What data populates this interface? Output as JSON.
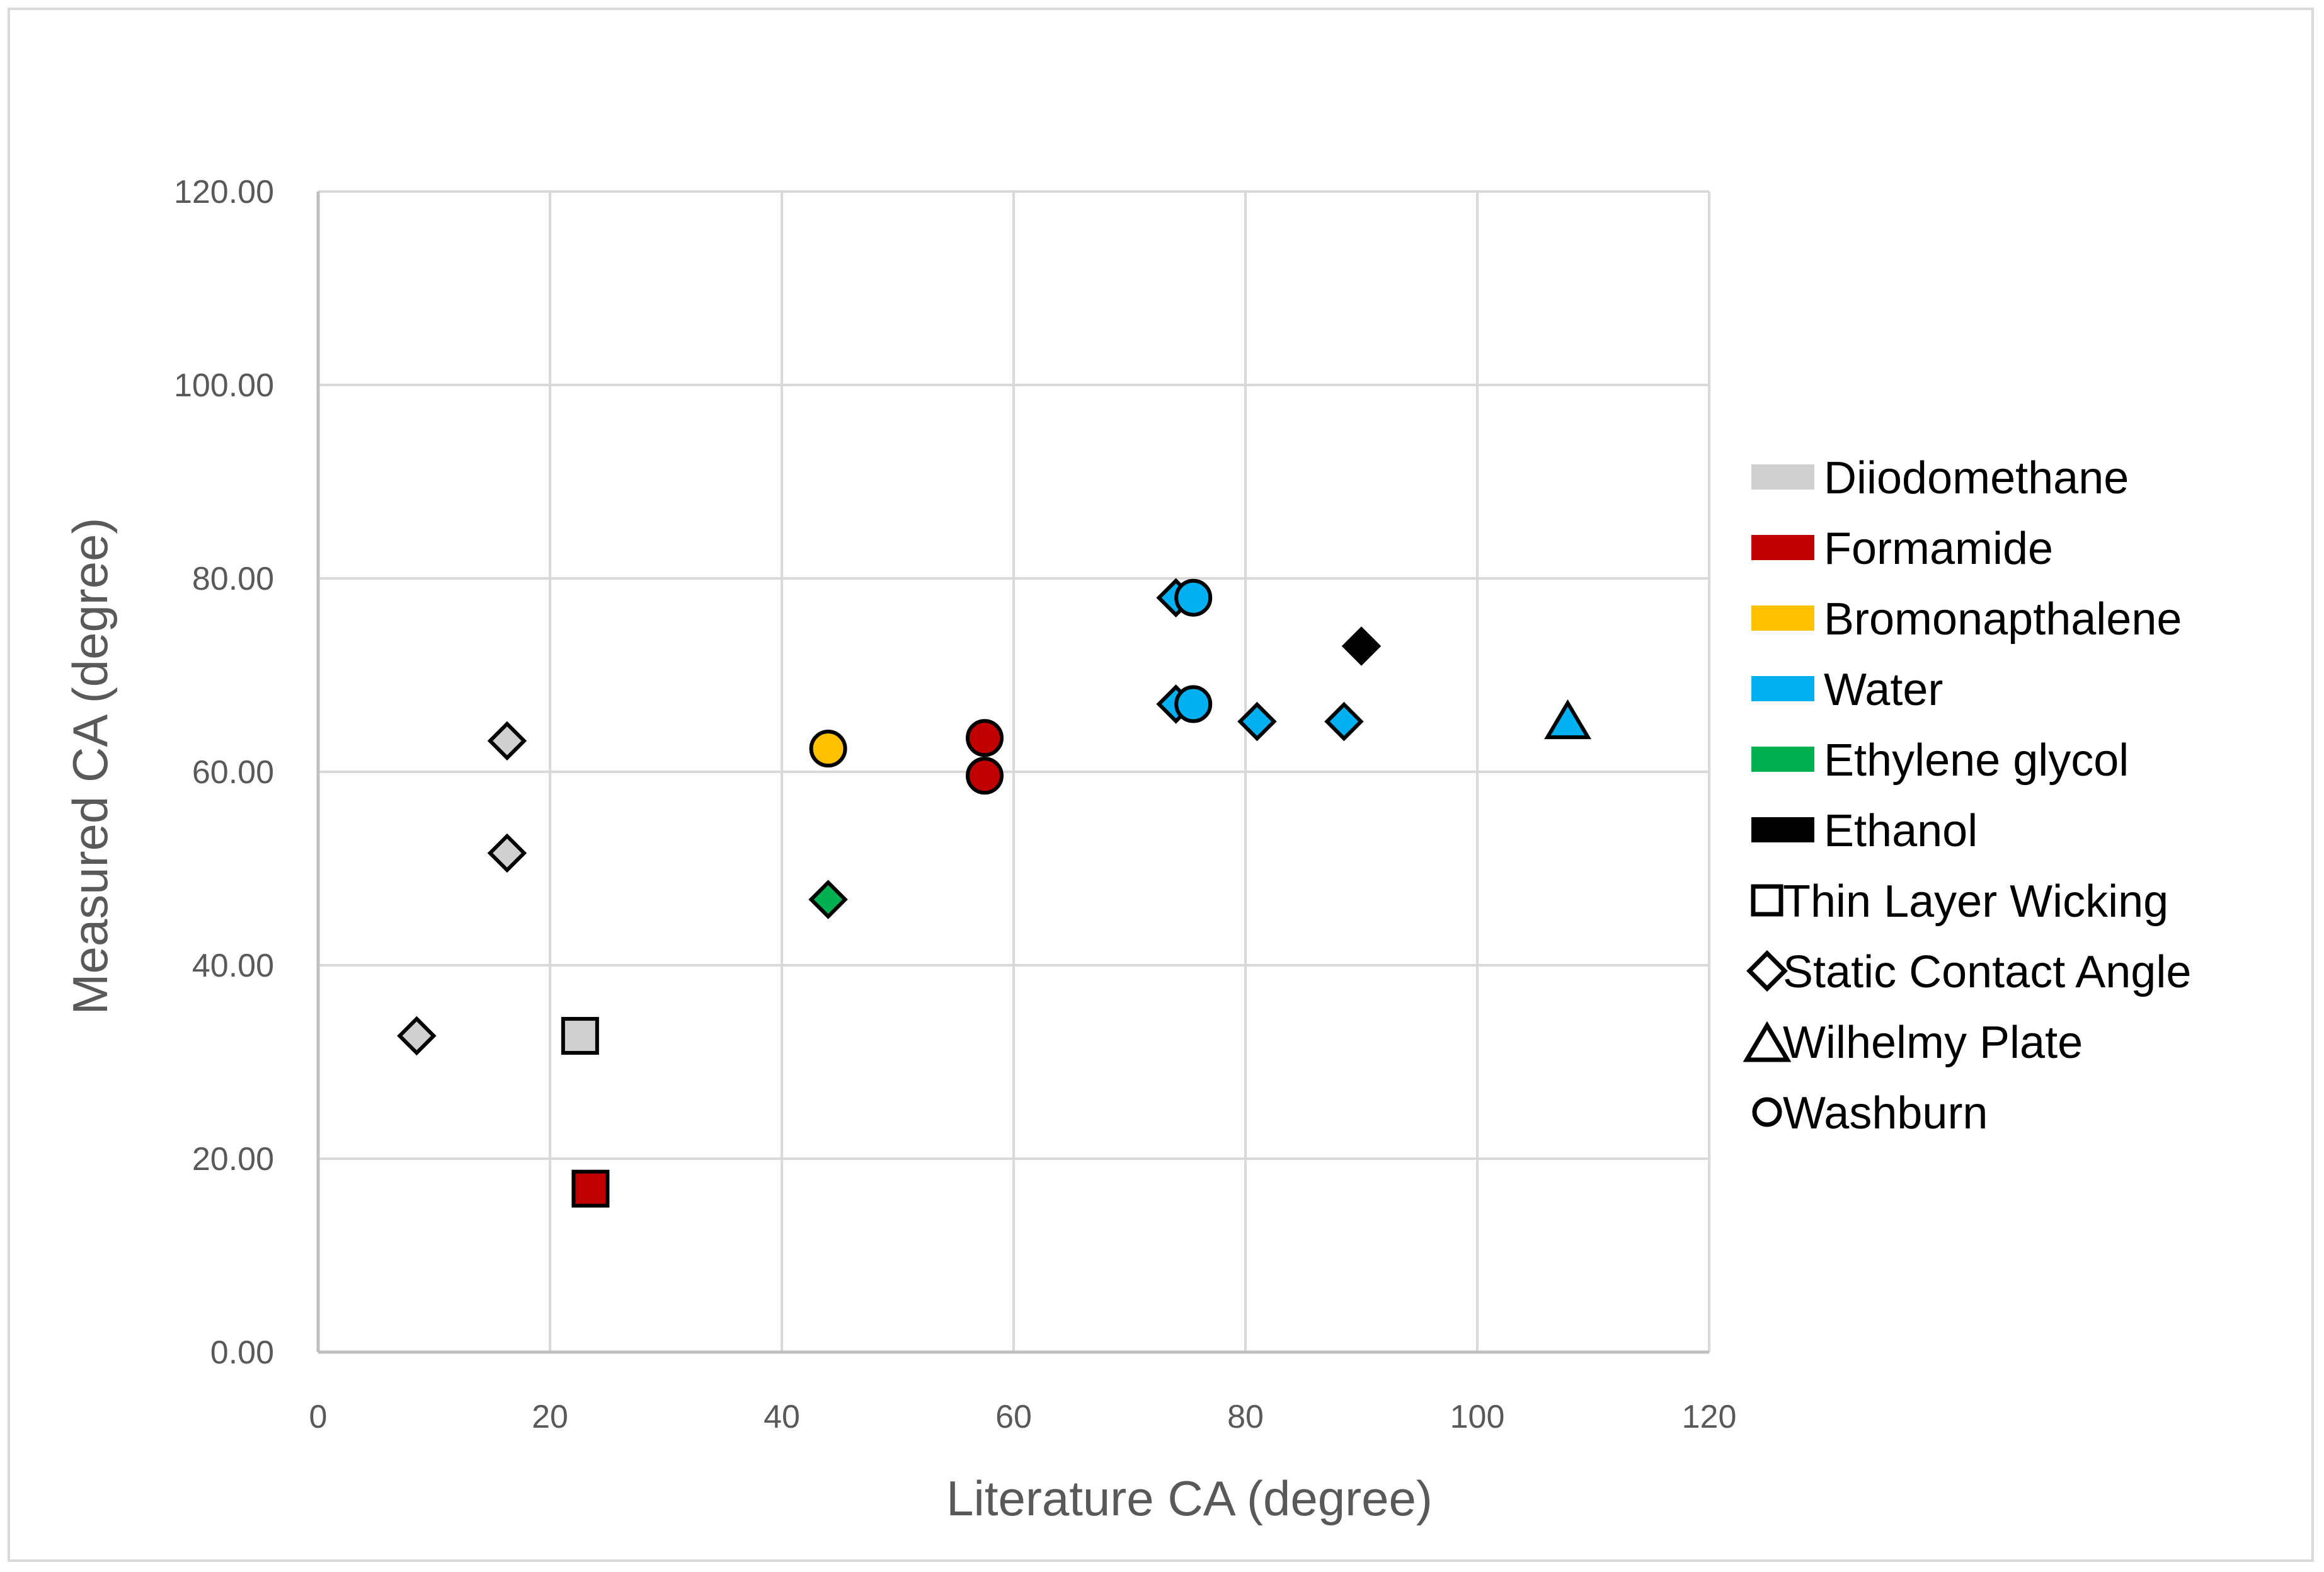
{
  "chart_data": {
    "type": "scatter",
    "title": "",
    "xlabel": "Literature CA (degree)",
    "ylabel": "Measured CA (degree)",
    "xlim": [
      0,
      120
    ],
    "ylim": [
      0,
      120
    ],
    "x_ticks": [
      "0",
      "20",
      "40",
      "60",
      "80",
      "100",
      "120"
    ],
    "y_ticks": [
      "0.00",
      "20.00",
      "40.00",
      "60.00",
      "80.00",
      "100.00",
      "120.00"
    ],
    "grid": true,
    "legend_position": "right",
    "liquids": [
      {
        "name": "Diiodomethane",
        "color": "#d0d0d0"
      },
      {
        "name": "Formamide",
        "color": "#c00000"
      },
      {
        "name": "Bromonapthalene",
        "color": "#ffc000"
      },
      {
        "name": "Water",
        "color": "#00b0f0"
      },
      {
        "name": "Ethylene glycol",
        "color": "#00b050"
      },
      {
        "name": "Ethanol",
        "color": "#000000"
      }
    ],
    "methods": [
      {
        "name": "Thin Layer Wicking",
        "marker": "square"
      },
      {
        "name": "Static Contact Angle",
        "marker": "diamond"
      },
      {
        "name": "Wilhelmy Plate",
        "marker": "triangle"
      },
      {
        "name": "Washburn",
        "marker": "circle"
      }
    ],
    "points": [
      {
        "x": 8.5,
        "y": 32.7,
        "liquid": "Diiodomethane",
        "method": "Static Contact Angle"
      },
      {
        "x": 16.3,
        "y": 51.6,
        "liquid": "Diiodomethane",
        "method": "Static Contact Angle"
      },
      {
        "x": 16.3,
        "y": 63.2,
        "liquid": "Diiodomethane",
        "method": "Static Contact Angle"
      },
      {
        "x": 22.6,
        "y": 32.7,
        "liquid": "Diiodomethane",
        "method": "Thin Layer Wicking"
      },
      {
        "x": 23.5,
        "y": 16.9,
        "liquid": "Formamide",
        "method": "Thin Layer Wicking"
      },
      {
        "x": 44.0,
        "y": 46.8,
        "liquid": "Ethylene glycol",
        "method": "Static Contact Angle"
      },
      {
        "x": 44.0,
        "y": 62.4,
        "liquid": "Bromonapthalene",
        "method": "Washburn"
      },
      {
        "x": 57.5,
        "y": 59.6,
        "liquid": "Formamide",
        "method": "Washburn"
      },
      {
        "x": 57.5,
        "y": 63.5,
        "liquid": "Formamide",
        "method": "Washburn"
      },
      {
        "x": 74.0,
        "y": 78.0,
        "liquid": "Water",
        "method": "Static Contact Angle"
      },
      {
        "x": 75.5,
        "y": 78.0,
        "liquid": "Water",
        "method": "Washburn"
      },
      {
        "x": 74.0,
        "y": 67.0,
        "liquid": "Water",
        "method": "Static Contact Angle"
      },
      {
        "x": 75.5,
        "y": 67.0,
        "liquid": "Water",
        "method": "Washburn"
      },
      {
        "x": 81.0,
        "y": 65.2,
        "liquid": "Water",
        "method": "Static Contact Angle"
      },
      {
        "x": 88.5,
        "y": 65.2,
        "liquid": "Water",
        "method": "Static Contact Angle"
      },
      {
        "x": 90.0,
        "y": 73.0,
        "liquid": "Ethanol",
        "method": "Static Contact Angle"
      },
      {
        "x": 107.8,
        "y": 65.2,
        "liquid": "Water",
        "method": "Wilhelmy Plate"
      }
    ]
  }
}
